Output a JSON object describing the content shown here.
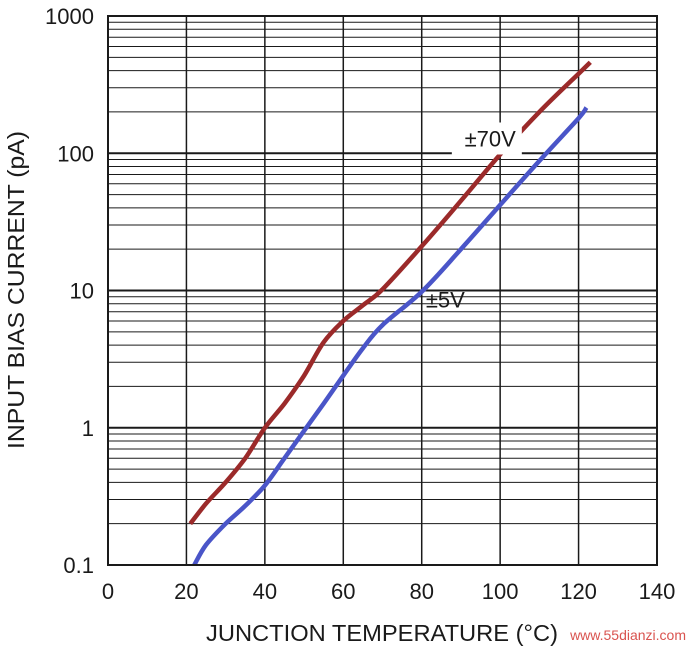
{
  "chart_data": {
    "type": "line",
    "title": "",
    "xlabel": "JUNCTION TEMPERATURE (°C)",
    "ylabel": "INPUT BIAS CURRENT (pA)",
    "xlim": [
      0,
      140
    ],
    "ylim": [
      0.1,
      1000
    ],
    "yscale": "log",
    "grid": true,
    "x_ticks": [
      0,
      20,
      40,
      60,
      80,
      100,
      120,
      140
    ],
    "x_tick_labels": [
      "0",
      "20",
      "40",
      "60",
      "80",
      "100",
      "120",
      "140"
    ],
    "y_ticks": [
      0.1,
      1,
      10,
      100,
      1000
    ],
    "y_tick_labels": [
      "0.1",
      "1",
      "10",
      "100",
      "1000"
    ],
    "series": [
      {
        "name": "±70V",
        "color": "#9b2a2a",
        "x": [
          21,
          25,
          30,
          35,
          40,
          45,
          50,
          55,
          60,
          65,
          70,
          80,
          90,
          100,
          110,
          120,
          123
        ],
        "y": [
          0.2,
          0.28,
          0.4,
          0.6,
          1.0,
          1.5,
          2.4,
          4.2,
          6.0,
          7.8,
          10.2,
          21,
          45,
          98,
          200,
          380,
          460
        ]
      },
      {
        "name": "±5V",
        "color": "#4a55c8",
        "x": [
          22,
          25,
          30,
          35,
          40,
          45,
          50,
          55,
          60,
          65,
          70,
          80,
          90,
          100,
          110,
          120,
          122
        ],
        "y": [
          0.1,
          0.14,
          0.2,
          0.27,
          0.38,
          0.6,
          0.95,
          1.5,
          2.4,
          3.8,
          5.6,
          9.8,
          20,
          42,
          88,
          180,
          215
        ]
      }
    ],
    "annotations": [
      {
        "text": "±70V",
        "series": 0
      },
      {
        "text": "±5V",
        "series": 1
      }
    ],
    "watermark": "www.55dianzi.com"
  }
}
